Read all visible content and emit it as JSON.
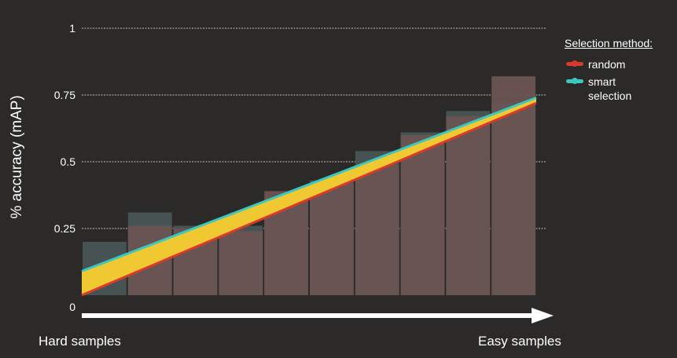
{
  "chart_data": {
    "type": "bar",
    "ylabel": "% accuracy (mAP)",
    "ylim": [
      0,
      1
    ],
    "yticks": [
      "0",
      "0.25",
      "0.5",
      "0.75",
      "1"
    ],
    "x_start_label": "Hard samples",
    "x_end_label": "Easy samples",
    "grid": true,
    "legend_placement": "right",
    "legend_title": "Selection method:",
    "series": [
      {
        "name": "random",
        "color": "#d93a2a",
        "bar_color": "#6a5452",
        "values": [
          0.0,
          0.26,
          0.25,
          0.24,
          0.39,
          0.42,
          0.49,
          0.6,
          0.67,
          0.82
        ],
        "line": [
          0.0,
          0.72
        ]
      },
      {
        "name": "smart\nselection",
        "color": "#3cc8c0",
        "bar_color": "#475253",
        "values": [
          0.2,
          0.31,
          0.26,
          0.26,
          0.36,
          0.43,
          0.54,
          0.61,
          0.69,
          0.72
        ],
        "line": [
          0.09,
          0.74
        ]
      }
    ],
    "fill_color": "#f0c832"
  }
}
